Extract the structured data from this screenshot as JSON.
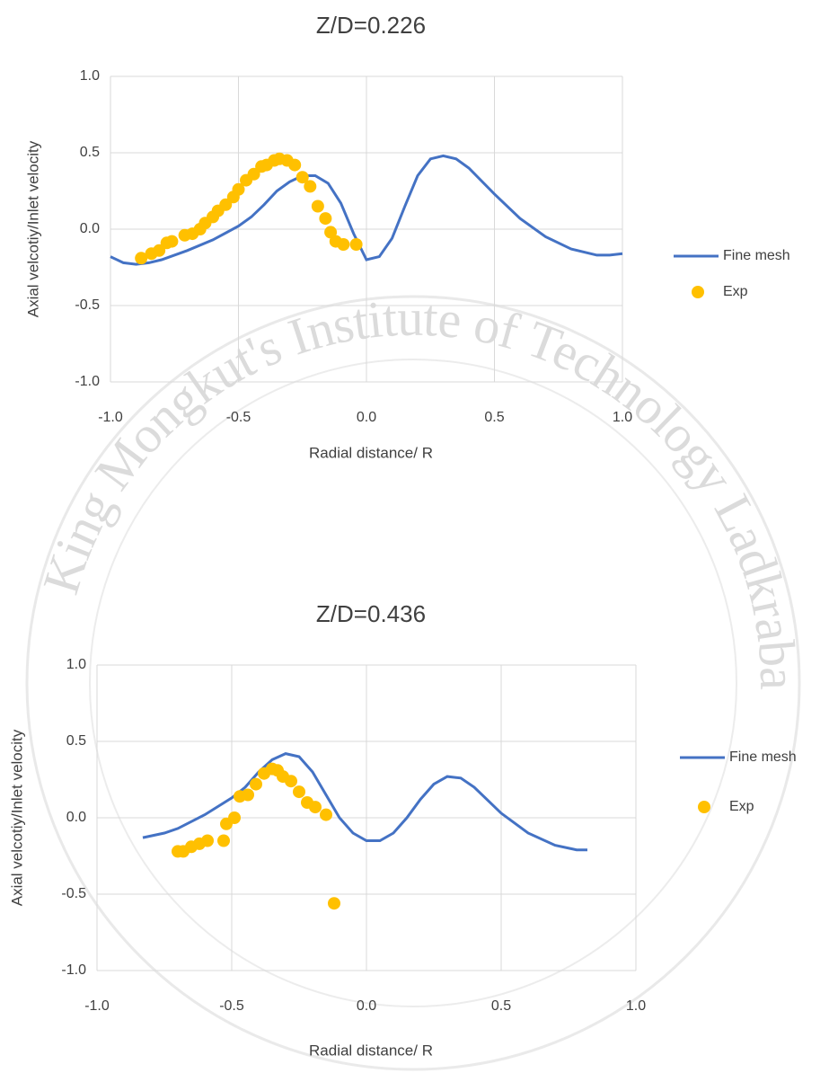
{
  "watermark": "King Mongkut's Institute of Technology Ladkrabang",
  "chart_data": [
    {
      "type": "line-scatter",
      "title": "Z/D=0.226",
      "x_label": "Radial distance/ R",
      "y_label": "Axial velcotiy/Inlet velocity",
      "xlim": [
        -1.0,
        1.0
      ],
      "ylim": [
        -1.0,
        1.0
      ],
      "xticks": [
        {
          "value": -1.0,
          "label": "-1.0"
        },
        -0.5,
        {
          "value": 0.0,
          "label": "0.0"
        },
        0.5,
        {
          "value": 1.0,
          "label": "1.0"
        }
      ],
      "yticks": [
        {
          "value": -1.0,
          "label": "-1.0"
        },
        -0.5,
        {
          "value": 0.0,
          "label": "0.0"
        },
        0.5,
        {
          "value": 1.0,
          "label": "1.0"
        }
      ],
      "grid": true,
      "legend": "right",
      "series": [
        {
          "name": "Fine mesh",
          "kind": "line",
          "color": "#4472c4",
          "x": [
            -1.0,
            -0.95,
            -0.9,
            -0.85,
            -0.8,
            -0.7,
            -0.6,
            -0.5,
            -0.45,
            -0.4,
            -0.35,
            -0.3,
            -0.25,
            -0.2,
            -0.15,
            -0.1,
            -0.05,
            0.0,
            0.05,
            0.1,
            0.15,
            0.2,
            0.25,
            0.3,
            0.35,
            0.4,
            0.5,
            0.6,
            0.7,
            0.8,
            0.9,
            0.95,
            1.0
          ],
          "values": [
            -0.18,
            -0.22,
            -0.23,
            -0.22,
            -0.2,
            -0.14,
            -0.07,
            0.02,
            0.08,
            0.16,
            0.25,
            0.31,
            0.35,
            0.35,
            0.3,
            0.17,
            -0.03,
            -0.2,
            -0.18,
            -0.06,
            0.15,
            0.35,
            0.46,
            0.48,
            0.46,
            0.4,
            0.23,
            0.07,
            -0.05,
            -0.13,
            -0.17,
            -0.17,
            -0.16
          ]
        },
        {
          "name": "Exp",
          "kind": "scatter",
          "color": "#ffc000",
          "x": [
            -0.88,
            -0.84,
            -0.81,
            -0.78,
            -0.76,
            -0.71,
            -0.68,
            -0.65,
            -0.63,
            -0.6,
            -0.58,
            -0.55,
            -0.52,
            -0.5,
            -0.47,
            -0.44,
            -0.41,
            -0.39,
            -0.36,
            -0.34,
            -0.31,
            -0.28,
            -0.25,
            -0.22,
            -0.19,
            -0.16,
            -0.14,
            -0.12,
            -0.09,
            -0.04
          ],
          "values": [
            -0.19,
            -0.16,
            -0.14,
            -0.09,
            -0.08,
            -0.04,
            -0.03,
            0.0,
            0.04,
            0.08,
            0.12,
            0.16,
            0.21,
            0.26,
            0.32,
            0.36,
            0.41,
            0.42,
            0.45,
            0.46,
            0.45,
            0.42,
            0.34,
            0.28,
            0.15,
            0.07,
            -0.02,
            -0.08,
            -0.1,
            -0.1
          ]
        }
      ]
    },
    {
      "type": "line-scatter",
      "title": "Z/D=0.436",
      "x_label": "Radial distance/ R",
      "y_label": "Axial velcotiy/Inlet velocity",
      "xlim": [
        -1.0,
        1.0
      ],
      "ylim": [
        -1.0,
        1.0
      ],
      "xticks": [
        {
          "value": -1.0,
          "label": "-1.0"
        },
        -0.5,
        {
          "value": 0.0,
          "label": "0.0"
        },
        0.5,
        {
          "value": 1.0,
          "label": "1.0"
        }
      ],
      "yticks": [
        {
          "value": -1.0,
          "label": "-1.0"
        },
        -0.5,
        {
          "value": 0.0,
          "label": "0.0"
        },
        0.5,
        {
          "value": 1.0,
          "label": "1.0"
        }
      ],
      "grid": true,
      "legend": "right",
      "series": [
        {
          "name": "Fine mesh",
          "kind": "line",
          "color": "#4472c4",
          "x": [
            -0.83,
            -0.75,
            -0.7,
            -0.6,
            -0.5,
            -0.45,
            -0.4,
            -0.35,
            -0.3,
            -0.25,
            -0.2,
            -0.15,
            -0.1,
            -0.05,
            0.0,
            0.05,
            0.1,
            0.15,
            0.2,
            0.25,
            0.3,
            0.35,
            0.4,
            0.5,
            0.6,
            0.7,
            0.78,
            0.82
          ],
          "values": [
            -0.13,
            -0.1,
            -0.07,
            0.02,
            0.13,
            0.2,
            0.3,
            0.38,
            0.42,
            0.4,
            0.3,
            0.15,
            0.0,
            -0.1,
            -0.15,
            -0.15,
            -0.1,
            0.0,
            0.12,
            0.22,
            0.27,
            0.26,
            0.2,
            0.03,
            -0.1,
            -0.18,
            -0.21,
            -0.21
          ]
        },
        {
          "name": "Exp",
          "kind": "scatter",
          "color": "#ffc000",
          "x": [
            -0.7,
            -0.68,
            -0.65,
            -0.62,
            -0.59,
            -0.53,
            -0.52,
            -0.49,
            -0.47,
            -0.44,
            -0.41,
            -0.38,
            -0.35,
            -0.33,
            -0.31,
            -0.28,
            -0.25,
            -0.22,
            -0.19,
            -0.15,
            -0.12
          ],
          "values": [
            -0.22,
            -0.22,
            -0.19,
            -0.17,
            -0.15,
            -0.15,
            -0.04,
            0.0,
            0.14,
            0.15,
            0.22,
            0.29,
            0.32,
            0.31,
            0.27,
            0.24,
            0.17,
            0.1,
            0.07,
            0.02,
            -0.56
          ]
        }
      ]
    }
  ]
}
